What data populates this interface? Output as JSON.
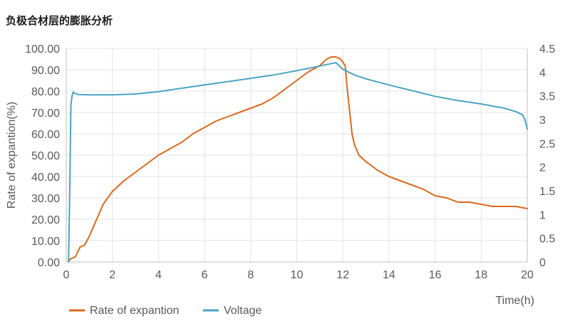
{
  "title": "负极合材层的膨胀分析",
  "chart_data": {
    "type": "line",
    "title": "负极合材层的膨胀分析",
    "xlabel": "Time(h)",
    "ylabel": "Rate of expantion(%)",
    "y2label": "",
    "xlim": [
      0,
      20
    ],
    "ylim": [
      0,
      100
    ],
    "y2lim": [
      0,
      4.5
    ],
    "x_ticks": [
      "0",
      "2",
      "4",
      "6",
      "8",
      "10",
      "12",
      "14",
      "16",
      "18",
      "20"
    ],
    "y_ticks": [
      "0.00",
      "10.00",
      "20.00",
      "30.00",
      "40.00",
      "50.00",
      "60.00",
      "70.00",
      "80.00",
      "90.00",
      "100.00"
    ],
    "y2_ticks": [
      "0",
      "0.5",
      "1",
      "1.5",
      "2",
      "2.5",
      "3",
      "3.5",
      "4",
      "4.5"
    ],
    "grid": true,
    "legend_position": "bottom-left",
    "series": [
      {
        "name": "Rate of expantion",
        "axis": "left",
        "color": "#d9691e",
        "x": [
          0.1,
          0.2,
          0.4,
          0.6,
          0.8,
          1.0,
          1.2,
          1.4,
          1.6,
          1.8,
          2.0,
          2.5,
          3.0,
          3.5,
          4.0,
          4.5,
          5.0,
          5.5,
          6.0,
          6.5,
          7.0,
          7.5,
          8.0,
          8.5,
          9.0,
          9.5,
          10.0,
          10.5,
          11.0,
          11.3,
          11.5,
          11.7,
          11.9,
          12.1,
          12.2,
          12.3,
          12.4,
          12.5,
          12.7,
          13.0,
          13.5,
          14.0,
          14.5,
          15.0,
          15.5,
          16.0,
          16.5,
          17.0,
          17.5,
          18.0,
          18.5,
          19.0,
          19.5,
          20.0
        ],
        "values": [
          0.5,
          1.5,
          2.5,
          7,
          8,
          12,
          17,
          22,
          27,
          30,
          33,
          38,
          42,
          46,
          50,
          53,
          56,
          60,
          63,
          66,
          68,
          70,
          72,
          74,
          77,
          81,
          85,
          89,
          92,
          95,
          96,
          96,
          95,
          92,
          80,
          70,
          60,
          55,
          50,
          47,
          43,
          40,
          38,
          36,
          34,
          31,
          30,
          28,
          28,
          27,
          26,
          26,
          26,
          25
        ]
      },
      {
        "name": "Voltage",
        "axis": "right",
        "color": "#4ba3c3",
        "x": [
          0.1,
          0.15,
          0.2,
          0.25,
          0.3,
          0.35,
          0.5,
          1.0,
          2.0,
          3.0,
          4.0,
          5.0,
          6.0,
          7.0,
          8.0,
          9.0,
          10.0,
          11.0,
          11.5,
          11.7,
          12.0,
          12.5,
          13.0,
          14.0,
          15.0,
          16.0,
          17.0,
          18.0,
          19.0,
          19.5,
          19.8,
          19.9,
          20.0
        ],
        "values": [
          0.0,
          1.5,
          3.3,
          3.5,
          3.58,
          3.56,
          3.53,
          3.52,
          3.52,
          3.54,
          3.59,
          3.66,
          3.73,
          3.8,
          3.87,
          3.94,
          4.03,
          4.13,
          4.18,
          4.2,
          4.06,
          3.94,
          3.86,
          3.73,
          3.61,
          3.49,
          3.4,
          3.33,
          3.24,
          3.17,
          3.1,
          3.0,
          2.8
        ]
      }
    ]
  }
}
